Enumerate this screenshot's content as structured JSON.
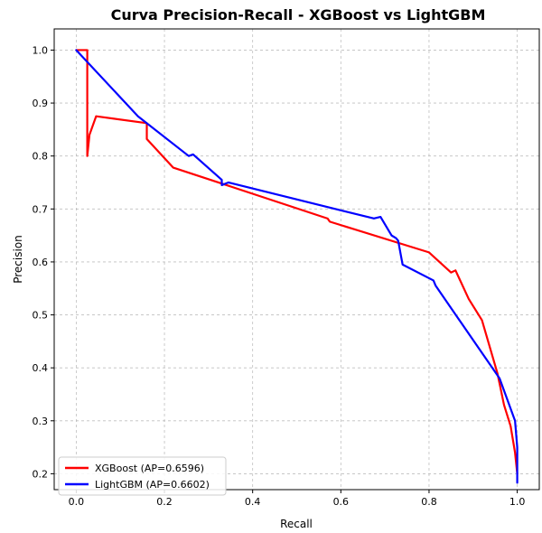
{
  "chart_data": {
    "type": "line",
    "title": "Curva Precision-Recall - XGBoost vs LightGBM",
    "xlabel": "Recall",
    "ylabel": "Precision",
    "xlim": [
      -0.05,
      1.05
    ],
    "ylim": [
      0.17,
      1.04
    ],
    "xticks": [
      0.0,
      0.2,
      0.4,
      0.6,
      0.8,
      1.0
    ],
    "xtick_labels": [
      "0.0",
      "0.2",
      "0.4",
      "0.6",
      "0.8",
      "1.0"
    ],
    "yticks": [
      0.2,
      0.3,
      0.4,
      0.5,
      0.6,
      0.7,
      0.8,
      0.9,
      1.0
    ],
    "ytick_labels": [
      "0.2",
      "0.3",
      "0.4",
      "0.5",
      "0.6",
      "0.7",
      "0.8",
      "0.9",
      "1.0"
    ],
    "grid": true,
    "legend_position": "lower-left",
    "series": [
      {
        "name": "XGBoost (AP=0.6596)",
        "color": "#ff0000",
        "x": [
          0.0,
          0.025,
          0.025,
          0.03,
          0.045,
          0.16,
          0.16,
          0.22,
          0.33,
          0.57,
          0.575,
          0.8,
          0.85,
          0.86,
          0.89,
          0.92,
          0.955,
          0.97,
          0.985,
          0.995,
          1.0
        ],
        "y": [
          1.0,
          1.0,
          0.8,
          0.84,
          0.875,
          0.862,
          0.832,
          0.778,
          0.748,
          0.682,
          0.676,
          0.618,
          0.58,
          0.584,
          0.53,
          0.49,
          0.39,
          0.33,
          0.29,
          0.24,
          0.2
        ]
      },
      {
        "name": "LightGBM (AP=0.6602)",
        "color": "#0000ff",
        "x": [
          0.0,
          0.14,
          0.255,
          0.265,
          0.33,
          0.33,
          0.345,
          0.675,
          0.69,
          0.715,
          0.725,
          0.73,
          0.74,
          0.81,
          0.815,
          0.96,
          0.995,
          1.0,
          1.0
        ],
        "y": [
          1.0,
          0.875,
          0.8,
          0.803,
          0.755,
          0.745,
          0.75,
          0.682,
          0.685,
          0.65,
          0.645,
          0.64,
          0.595,
          0.565,
          0.555,
          0.38,
          0.3,
          0.25,
          0.183
        ]
      }
    ]
  }
}
